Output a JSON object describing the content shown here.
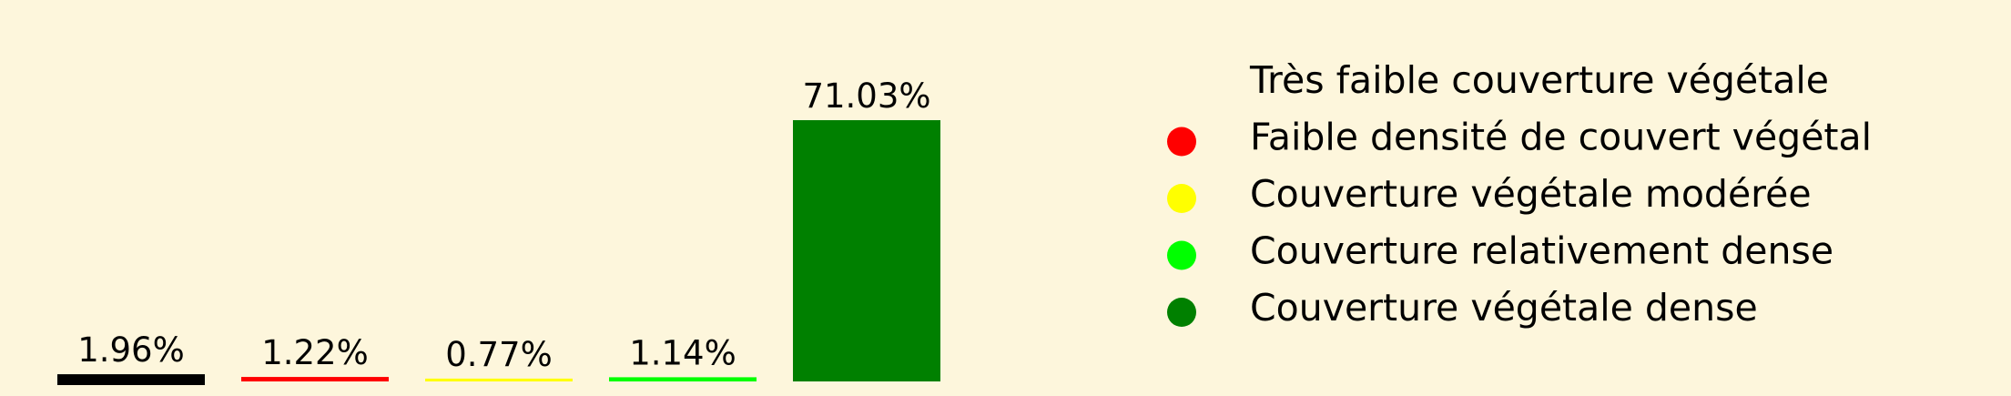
{
  "chart_data": {
    "type": "bar",
    "title": "",
    "xlabel": "",
    "ylabel": "",
    "ylim": [
      0,
      75
    ],
    "grid": false,
    "legend_placement": "right",
    "categories": [
      "Très faible couverture végétale",
      "Faible densité de couvert végétal",
      "Couverture végétale modérée",
      "Couverture relativement dense",
      "Couverture végétale dense"
    ],
    "values": [
      1.96,
      1.22,
      0.77,
      1.14,
      71.03
    ],
    "value_labels": [
      "1.96%",
      "1.22%",
      "0.77%",
      "1.14%",
      "71.03%"
    ],
    "colors": [
      "#000000",
      "#ff0000",
      "#ffff00",
      "#00ff00",
      "#008000"
    ]
  }
}
